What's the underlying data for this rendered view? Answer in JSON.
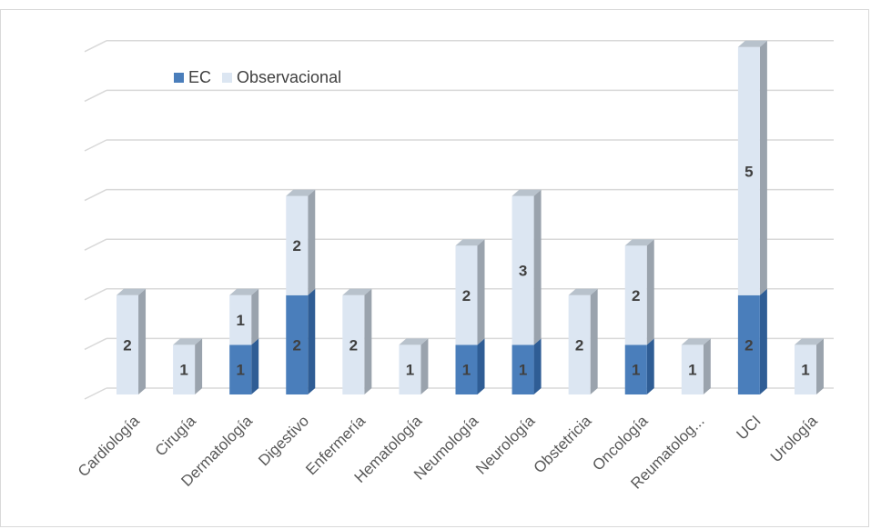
{
  "chart_data": {
    "type": "bar",
    "stacked": true,
    "three_d": true,
    "title": "",
    "xlabel": "",
    "ylabel": "",
    "ylim": [
      0,
      7
    ],
    "y_ticks_visible": false,
    "grid": true,
    "legend_position": "top-left",
    "categories": [
      "Cardiología",
      "Cirugía",
      "Dermatología",
      "Digestivo",
      "Enfermería",
      "Hematología",
      "Neumología",
      "Neurología",
      "Obstetricia",
      "Oncología",
      "Reumatolog...",
      "UCI",
      "Urología"
    ],
    "series": [
      {
        "name": "EC",
        "color": "#4a7ebb",
        "values": [
          0,
          0,
          1,
          2,
          0,
          0,
          1,
          1,
          0,
          1,
          0,
          2,
          0
        ]
      },
      {
        "name": "Observacional",
        "color": "#dce6f2",
        "values": [
          2,
          1,
          1,
          2,
          2,
          1,
          2,
          3,
          2,
          2,
          1,
          5,
          1
        ]
      }
    ]
  }
}
